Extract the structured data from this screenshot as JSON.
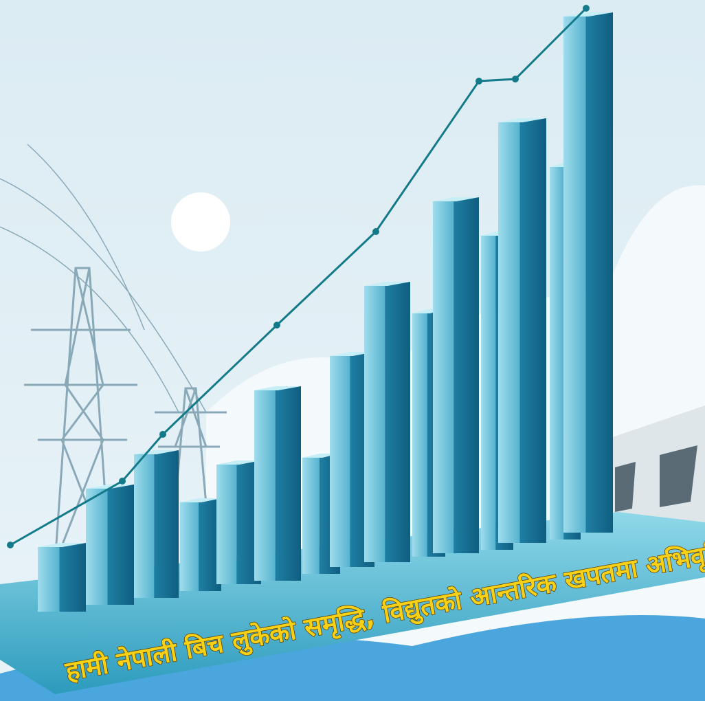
{
  "caption": "हामी नेपाली बिच लुकेको समृद्धि, विद्युतको आन्तरिक खपतमा अभिवृद्धि ।"
}
